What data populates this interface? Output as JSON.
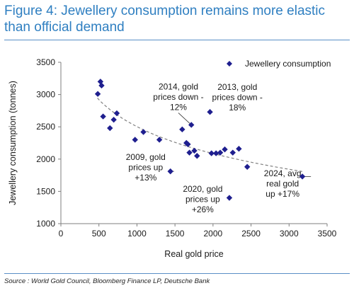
{
  "title_line1": "Figure 4: Jewellery consumption remains more elastic",
  "title_line2": "than official demand",
  "source": "Source : World Gold Council, Bloomberg Finance LP, Deutsche Bank",
  "chart_data": {
    "type": "scatter",
    "title": "Figure 4: Jewellery consumption remains more elastic than official demand",
    "xlabel": "Real gold price",
    "ylabel": "Jewellery consumption (tonnes)",
    "xlim": [
      0,
      3500
    ],
    "ylim": [
      1000,
      3500
    ],
    "xticks": [
      "0",
      "500",
      "1000",
      "1500",
      "2000",
      "2500",
      "3000",
      "3500"
    ],
    "yticks": [
      "1000",
      "1500",
      "2000",
      "2500",
      "3000",
      "3500"
    ],
    "grid": false,
    "legend": {
      "placement": "top-right",
      "entries": [
        "Jewellery consumption"
      ]
    },
    "series": [
      {
        "name": "Jewellery consumption",
        "color": "#1f1f8f",
        "marker": "diamond",
        "points": [
          [
            485,
            3010
          ],
          [
            520,
            3200
          ],
          [
            535,
            3140
          ],
          [
            555,
            2660
          ],
          [
            645,
            2480
          ],
          [
            695,
            2610
          ],
          [
            735,
            2710
          ],
          [
            1085,
            2420
          ],
          [
            975,
            2300
          ],
          [
            1295,
            2300
          ],
          [
            1440,
            1810
          ],
          [
            1595,
            2460
          ],
          [
            1650,
            2250
          ],
          [
            1670,
            2230
          ],
          [
            1690,
            2100
          ],
          [
            1715,
            2530
          ],
          [
            1755,
            2130
          ],
          [
            1790,
            2050
          ],
          [
            1960,
            2730
          ],
          [
            1980,
            2090
          ],
          [
            2040,
            2090
          ],
          [
            2095,
            2100
          ],
          [
            2155,
            2150
          ],
          [
            2215,
            1400
          ],
          [
            2260,
            2100
          ],
          [
            2340,
            2160
          ],
          [
            2450,
            1880
          ],
          [
            3175,
            1730
          ]
        ]
      }
    ],
    "trendline": {
      "style": "dashed",
      "color": "#808080",
      "type": "logarithmic",
      "from_x": 480,
      "to_x": 3180
    },
    "annotations": [
      {
        "lines": [
          "2014, gold",
          "prices down -",
          "12%"
        ],
        "x": 1545,
        "y": 2965,
        "point": [
          1715,
          2530
        ]
      },
      {
        "lines": [
          "2013, gold",
          "prices down -",
          "18%"
        ],
        "x": 2320,
        "y": 2960,
        "point": [
          1960,
          2730
        ]
      },
      {
        "lines": [
          "2009, gold",
          "prices up",
          "+13%"
        ],
        "x": 1115,
        "y": 1875,
        "point": [
          1440,
          1810
        ]
      },
      {
        "lines": [
          "2020, gold",
          "prices up",
          "+26%"
        ],
        "x": 1865,
        "y": 1380,
        "point": [
          2215,
          1400
        ]
      },
      {
        "lines": [
          "2024, avg",
          "real gold",
          "up +17%"
        ],
        "x": 2915,
        "y": 1620,
        "point": [
          3175,
          1730
        ]
      }
    ]
  }
}
